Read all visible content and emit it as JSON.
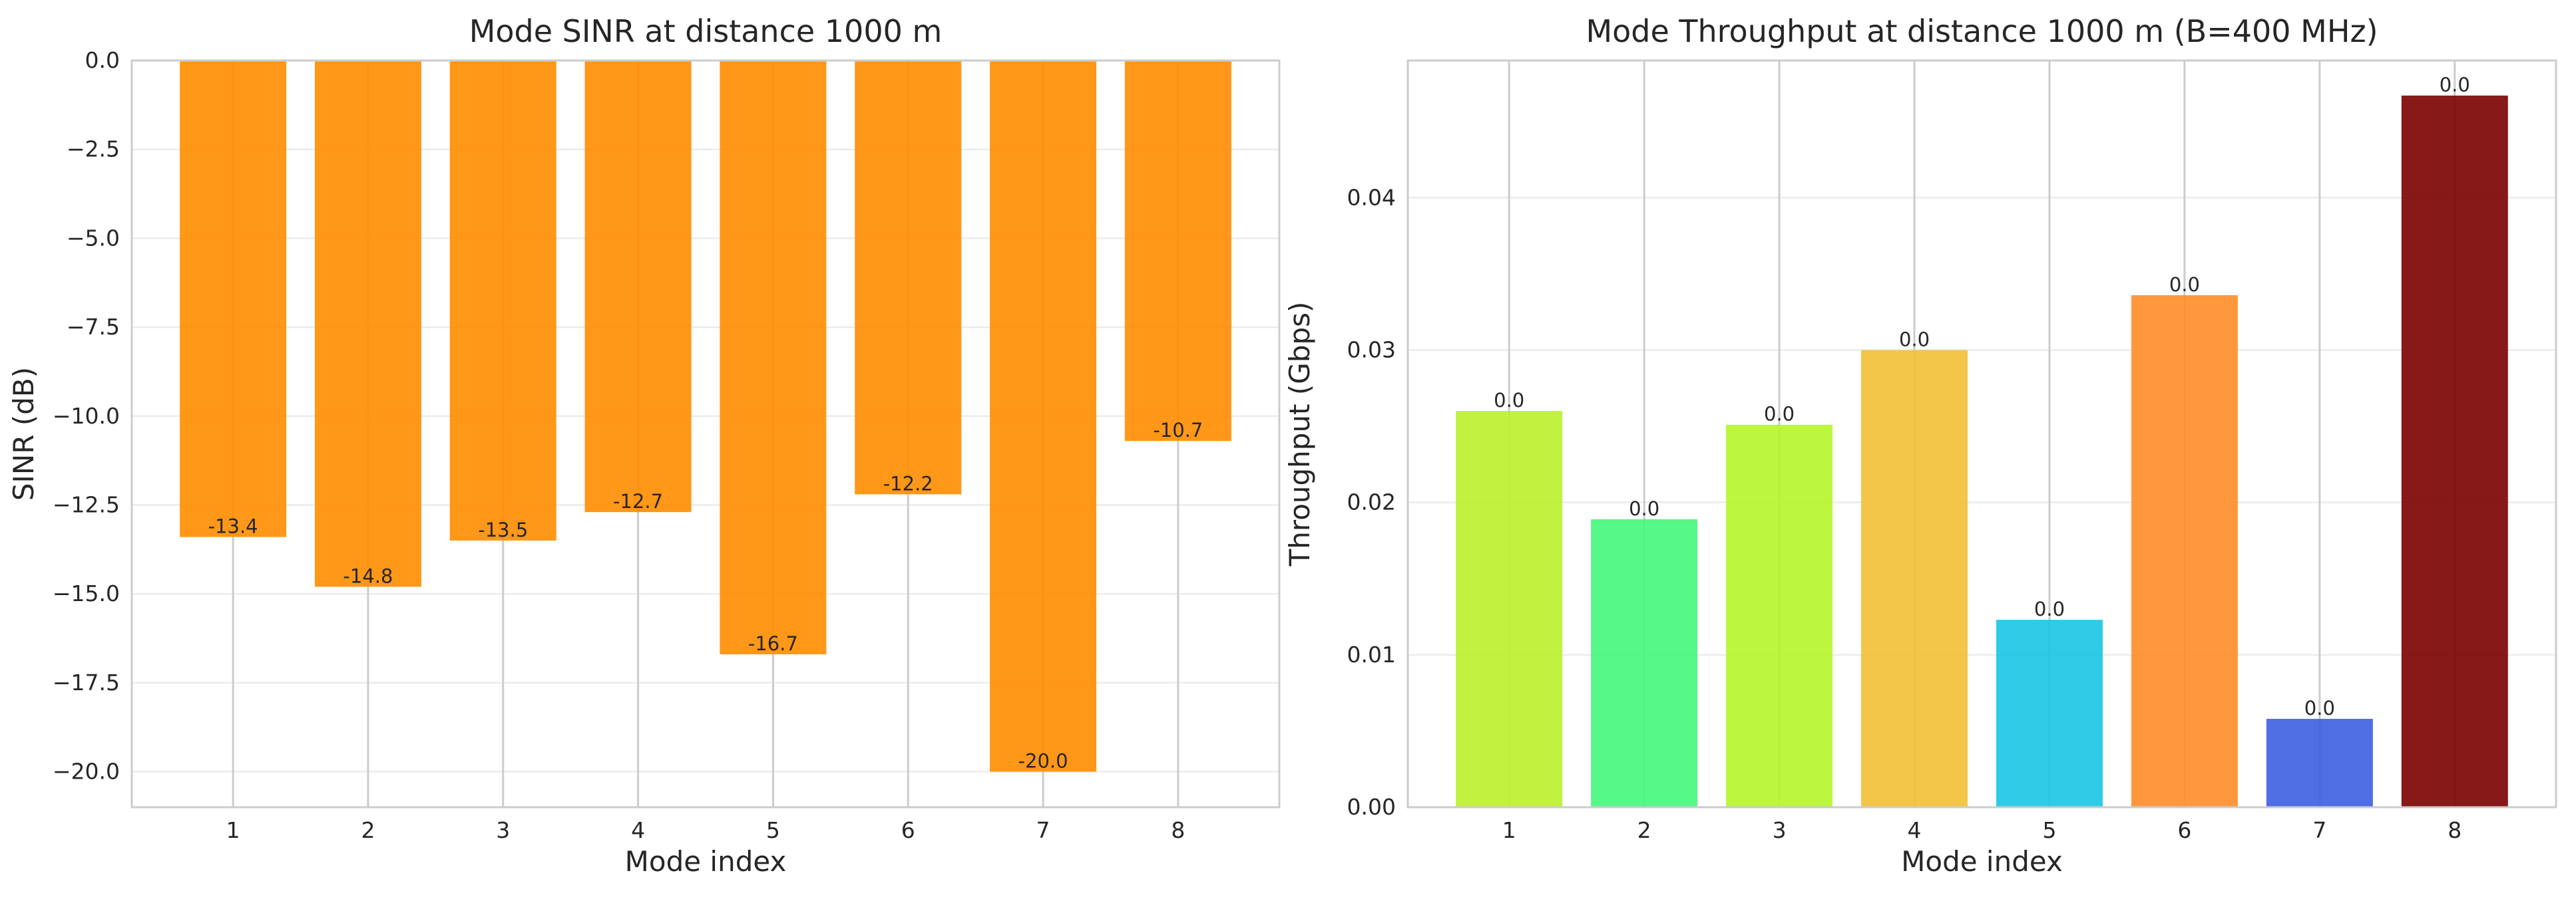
{
  "chart_data": [
    {
      "type": "bar",
      "title": "Mode SINR at distance 1000 m",
      "xlabel": "Mode index",
      "ylabel": "SINR (dB)",
      "categories": [
        "1",
        "2",
        "3",
        "4",
        "5",
        "6",
        "7",
        "8"
      ],
      "values": [
        -13.4,
        -14.8,
        -13.5,
        -12.7,
        -16.7,
        -12.2,
        -20.0,
        -10.7
      ],
      "data_labels": [
        "-13.4",
        "-14.8",
        "-13.5",
        "-12.7",
        "-16.7",
        "-12.2",
        "-20.0",
        "-10.7"
      ],
      "ylim": [
        -21.0,
        0.0
      ],
      "yticks": [
        0.0,
        -2.5,
        -5.0,
        -7.5,
        -10.0,
        -12.5,
        -15.0,
        -17.5,
        -20.0
      ],
      "ytick_labels": [
        "0.0",
        "−2.5",
        "−5.0",
        "−7.5",
        "−10.0",
        "−12.5",
        "−15.0",
        "−17.5",
        "−20.0"
      ],
      "grid": true,
      "colors": [
        "#ff8c00",
        "#ff8c00",
        "#ff8c00",
        "#ff8c00",
        "#ff8c00",
        "#ff8c00",
        "#ff8c00",
        "#ff8c00"
      ]
    },
    {
      "type": "bar",
      "title": "Mode Throughput at distance 1000 m (B=400 MHz)",
      "xlabel": "Mode index",
      "ylabel": "Throughput (Gbps)",
      "categories": [
        "1",
        "2",
        "3",
        "4",
        "5",
        "6",
        "7",
        "8"
      ],
      "values": [
        0.026,
        0.0189,
        0.0251,
        0.03,
        0.0123,
        0.0336,
        0.0058,
        0.0467
      ],
      "data_labels": [
        "0.0",
        "0.0",
        "0.0",
        "0.0",
        "0.0",
        "0.0",
        "0.0",
        "0.0"
      ],
      "ylim": [
        0.0,
        0.049
      ],
      "yticks": [
        0.0,
        0.01,
        0.02,
        0.03,
        0.04
      ],
      "ytick_labels": [
        "0.00",
        "0.01",
        "0.02",
        "0.03",
        "0.04"
      ],
      "grid": true,
      "colors": [
        "#bbf02a",
        "#44f77a",
        "#b5f52a",
        "#f2c035",
        "#18c5e3",
        "#ff8c28",
        "#3c5ee0",
        "#7a0000"
      ]
    }
  ]
}
